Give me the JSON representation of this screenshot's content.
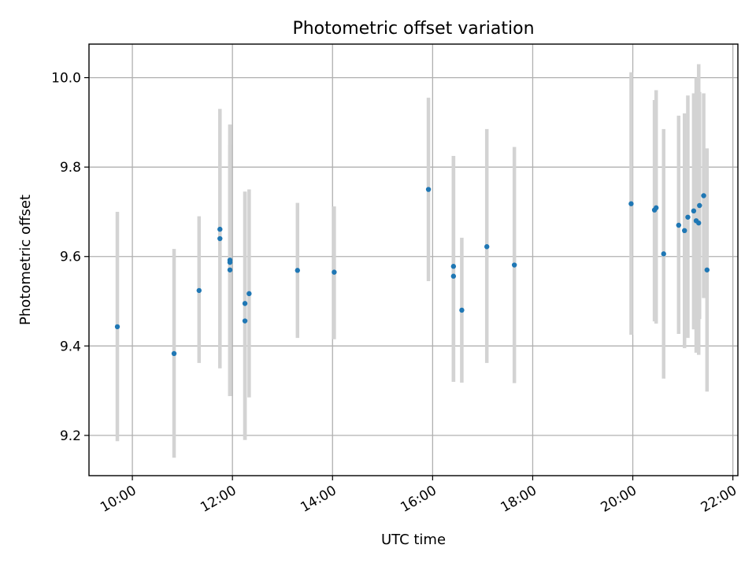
{
  "chart_data": {
    "type": "scatter",
    "title": "Photometric offset variation",
    "xlabel": "UTC time",
    "ylabel": "Photometric offset",
    "x_tick_labels": [
      "10:00",
      "12:00",
      "14:00",
      "16:00",
      "18:00",
      "20:00",
      "22:00"
    ],
    "x_tick_hours": [
      10,
      12,
      14,
      16,
      18,
      20,
      22
    ],
    "y_tick_labels": [
      "9.2",
      "9.4",
      "9.6",
      "9.8",
      "10.0"
    ],
    "y_ticks": [
      9.2,
      9.4,
      9.6,
      9.8,
      10.0
    ],
    "xlim": [
      "09:08",
      "22:06"
    ],
    "ylim": [
      9.11,
      10.075
    ],
    "grid": true,
    "legend": "none",
    "point_color": "#1f77b4",
    "errorbar_color": "#d3d3d3",
    "series": [
      {
        "points": [
          {
            "x": "09:42",
            "y": 9.443,
            "ylow": 9.187,
            "yhigh": 9.7
          },
          {
            "x": "10:50",
            "y": 9.383,
            "ylow": 9.15,
            "yhigh": 9.617
          },
          {
            "x": "11:20",
            "y": 9.524,
            "ylow": 9.362,
            "yhigh": 9.69
          },
          {
            "x": "11:45",
            "y": 9.661,
            "ylow": 9.393,
            "yhigh": 9.93
          },
          {
            "x": "11:45",
            "y": 9.64,
            "ylow": 9.35,
            "yhigh": 9.93
          },
          {
            "x": "11:57",
            "y": 9.592,
            "ylow": 9.288,
            "yhigh": 9.895
          },
          {
            "x": "11:57",
            "y": 9.587,
            "ylow": 9.288,
            "yhigh": 9.895
          },
          {
            "x": "11:57",
            "y": 9.57,
            "ylow": 9.288,
            "yhigh": 9.85
          },
          {
            "x": "12:15",
            "y": 9.495,
            "ylow": 9.19,
            "yhigh": 9.745
          },
          {
            "x": "12:15",
            "y": 9.456,
            "ylow": 9.19,
            "yhigh": 9.745
          },
          {
            "x": "12:20",
            "y": 9.517,
            "ylow": 9.285,
            "yhigh": 9.75
          },
          {
            "x": "13:18",
            "y": 9.569,
            "ylow": 9.418,
            "yhigh": 9.72
          },
          {
            "x": "14:02",
            "y": 9.565,
            "ylow": 9.415,
            "yhigh": 9.712
          },
          {
            "x": "15:55",
            "y": 9.75,
            "ylow": 9.545,
            "yhigh": 9.955
          },
          {
            "x": "16:25",
            "y": 9.578,
            "ylow": 9.32,
            "yhigh": 9.825
          },
          {
            "x": "16:25",
            "y": 9.556,
            "ylow": 9.32,
            "yhigh": 9.825
          },
          {
            "x": "16:35",
            "y": 9.48,
            "ylow": 9.318,
            "yhigh": 9.642
          },
          {
            "x": "17:05",
            "y": 9.622,
            "ylow": 9.362,
            "yhigh": 9.885
          },
          {
            "x": "17:38",
            "y": 9.581,
            "ylow": 9.317,
            "yhigh": 9.845
          },
          {
            "x": "19:58",
            "y": 9.718,
            "ylow": 9.425,
            "yhigh": 10.012
          },
          {
            "x": "20:26",
            "y": 9.704,
            "ylow": 9.455,
            "yhigh": 9.95
          },
          {
            "x": "20:28",
            "y": 9.709,
            "ylow": 9.45,
            "yhigh": 9.972
          },
          {
            "x": "20:37",
            "y": 9.606,
            "ylow": 9.327,
            "yhigh": 9.885
          },
          {
            "x": "20:55",
            "y": 9.67,
            "ylow": 9.427,
            "yhigh": 9.915
          },
          {
            "x": "21:02",
            "y": 9.658,
            "ylow": 9.395,
            "yhigh": 9.92
          },
          {
            "x": "21:06",
            "y": 9.688,
            "ylow": 9.418,
            "yhigh": 9.96
          },
          {
            "x": "21:13",
            "y": 9.702,
            "ylow": 9.437,
            "yhigh": 9.965
          },
          {
            "x": "21:16",
            "y": 9.68,
            "ylow": 9.385,
            "yhigh": 10.0
          },
          {
            "x": "21:19",
            "y": 9.675,
            "ylow": 9.38,
            "yhigh": 10.03
          },
          {
            "x": "21:20",
            "y": 9.714,
            "ylow": 9.46,
            "yhigh": 9.968
          },
          {
            "x": "21:25",
            "y": 9.736,
            "ylow": 9.507,
            "yhigh": 9.965
          },
          {
            "x": "21:29",
            "y": 9.57,
            "ylow": 9.298,
            "yhigh": 9.842
          }
        ]
      }
    ]
  }
}
